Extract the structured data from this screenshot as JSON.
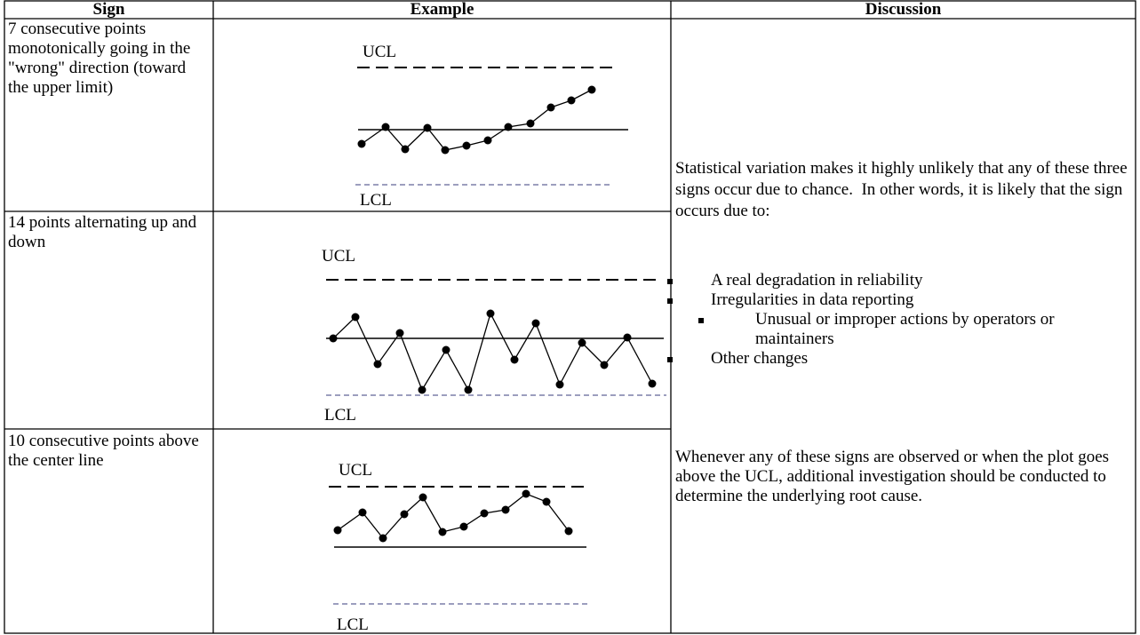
{
  "table": {
    "header": [
      "Sign",
      "Example",
      "Discussion"
    ],
    "rows": [
      {
        "sign": "7 consecutive points monotonically going in the \"wrong\" direction (toward the upper limit)",
        "ucl": "UCL",
        "lcl": "LCL"
      },
      {
        "sign": "14 points alternating up and down",
        "ucl": "UCL",
        "lcl": "LCL"
      },
      {
        "sign": "10 consecutive points above the center line",
        "ucl": "UCL",
        "lcl": "LCL"
      }
    ],
    "discussion": {
      "intro": "Statistical variation makes it highly unlikely that any of these three signs occur due to chance.  In other words, it is likely that the sign occurs due to:",
      "bullets": [
        "A real degradation in reliability",
        "Irregularities in data reporting",
        "Unusual or improper actions by operators or maintainers",
        "Other changes"
      ],
      "closing": "Whenever any of these signs are observed or when the plot goes above the UCL, additional investigation should be conducted to determine the underlying root cause."
    }
  }
}
